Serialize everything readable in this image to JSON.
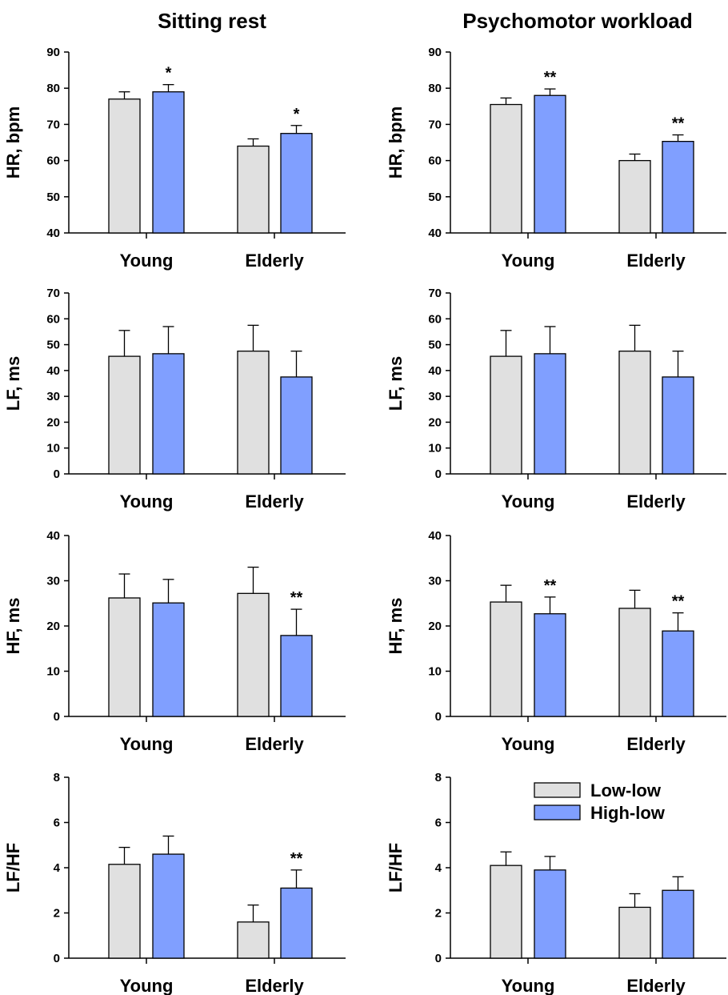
{
  "columns": [
    "Sitting rest",
    "Psychomotor workload"
  ],
  "colors": {
    "Low-low": "#e0e0e0",
    "High-low": "#809fff",
    "axis": "#000000"
  },
  "legend": {
    "entries": [
      "Low-low",
      "High-low"
    ],
    "placement": "top-right of bottom-right panel"
  },
  "chart_data": [
    {
      "type": "bar",
      "panel": "Sitting rest - HR",
      "title": "Sitting rest",
      "ylabel": "HR, bpm",
      "categories": [
        "Young",
        "Elderly"
      ],
      "ylim": [
        40,
        90
      ],
      "yticks": [
        "40",
        "50",
        "60",
        "70",
        "80",
        "90"
      ],
      "series": [
        {
          "name": "Low-low",
          "values": [
            77,
            64
          ],
          "errors": [
            2,
            2
          ]
        },
        {
          "name": "High-low",
          "values": [
            79,
            67.5
          ],
          "errors": [
            2,
            2.2
          ]
        }
      ],
      "annotations": [
        {
          "series": "High-low",
          "category": "Young",
          "text": "*"
        },
        {
          "series": "High-low",
          "category": "Elderly",
          "text": "*"
        }
      ]
    },
    {
      "type": "bar",
      "panel": "Psychomotor workload - HR",
      "title": "Psychomotor workload",
      "ylabel": "HR, bpm",
      "categories": [
        "Young",
        "Elderly"
      ],
      "ylim": [
        40,
        90
      ],
      "yticks": [
        "40",
        "50",
        "60",
        "70",
        "80",
        "90"
      ],
      "series": [
        {
          "name": "Low-low",
          "values": [
            75.5,
            60
          ],
          "errors": [
            1.8,
            1.8
          ]
        },
        {
          "name": "High-low",
          "values": [
            78,
            65.3
          ],
          "errors": [
            1.8,
            1.8
          ]
        }
      ],
      "annotations": [
        {
          "series": "High-low",
          "category": "Young",
          "text": "**"
        },
        {
          "series": "High-low",
          "category": "Elderly",
          "text": "**"
        }
      ]
    },
    {
      "type": "bar",
      "panel": "Sitting rest - LF",
      "ylabel": "LF, ms",
      "categories": [
        "Young",
        "Elderly"
      ],
      "ylim": [
        0,
        70
      ],
      "yticks": [
        "0",
        "10",
        "20",
        "30",
        "40",
        "50",
        "60",
        "70"
      ],
      "series": [
        {
          "name": "Low-low",
          "values": [
            45.5,
            47.5
          ],
          "errors": [
            10,
            10
          ]
        },
        {
          "name": "High-low",
          "values": [
            46.5,
            37.5
          ],
          "errors": [
            10.5,
            10
          ]
        }
      ],
      "annotations": []
    },
    {
      "type": "bar",
      "panel": "Psychomotor workload - LF",
      "ylabel": "LF, ms",
      "categories": [
        "Young",
        "Elderly"
      ],
      "ylim": [
        0,
        70
      ],
      "yticks": [
        "0",
        "10",
        "20",
        "30",
        "40",
        "50",
        "60",
        "70"
      ],
      "series": [
        {
          "name": "Low-low",
          "values": [
            45.5,
            47.5
          ],
          "errors": [
            10,
            10
          ]
        },
        {
          "name": "High-low",
          "values": [
            46.5,
            37.5
          ],
          "errors": [
            10.5,
            10
          ]
        }
      ],
      "annotations": []
    },
    {
      "type": "bar",
      "panel": "Sitting rest - HF",
      "ylabel": "HF, ms",
      "categories": [
        "Young",
        "Elderly"
      ],
      "ylim": [
        0,
        40
      ],
      "yticks": [
        "0",
        "10",
        "20",
        "30",
        "40"
      ],
      "series": [
        {
          "name": "Low-low",
          "values": [
            26.2,
            27.2
          ],
          "errors": [
            5.3,
            5.8
          ]
        },
        {
          "name": "High-low",
          "values": [
            25.1,
            17.9
          ],
          "errors": [
            5.2,
            5.8
          ]
        }
      ],
      "annotations": [
        {
          "series": "High-low",
          "category": "Elderly",
          "text": "**"
        }
      ]
    },
    {
      "type": "bar",
      "panel": "Psychomotor workload - HF",
      "ylabel": "HF, ms",
      "categories": [
        "Young",
        "Elderly"
      ],
      "ylim": [
        0,
        40
      ],
      "yticks": [
        "0",
        "10",
        "20",
        "30",
        "40"
      ],
      "series": [
        {
          "name": "Low-low",
          "values": [
            25.3,
            23.9
          ],
          "errors": [
            3.7,
            4
          ]
        },
        {
          "name": "High-low",
          "values": [
            22.7,
            18.9
          ],
          "errors": [
            3.7,
            4
          ]
        }
      ],
      "annotations": [
        {
          "series": "High-low",
          "category": "Young",
          "text": "**"
        },
        {
          "series": "High-low",
          "category": "Elderly",
          "text": "**"
        }
      ]
    },
    {
      "type": "bar",
      "panel": "Sitting rest - LF/HF",
      "ylabel": "LF/HF",
      "categories": [
        "Young",
        "Elderly"
      ],
      "ylim": [
        0,
        8
      ],
      "yticks": [
        "0",
        "2",
        "4",
        "6",
        "8"
      ],
      "series": [
        {
          "name": "Low-low",
          "values": [
            4.15,
            1.6
          ],
          "errors": [
            0.75,
            0.75
          ]
        },
        {
          "name": "High-low",
          "values": [
            4.6,
            3.1
          ],
          "errors": [
            0.8,
            0.8
          ]
        }
      ],
      "annotations": [
        {
          "series": "High-low",
          "category": "Elderly",
          "text": "**"
        }
      ]
    },
    {
      "type": "bar",
      "panel": "Psychomotor workload - LF/HF",
      "ylabel": "LF/HF",
      "categories": [
        "Young",
        "Elderly"
      ],
      "ylim": [
        0,
        8
      ],
      "yticks": [
        "0",
        "2",
        "4",
        "6",
        "8"
      ],
      "series": [
        {
          "name": "Low-low",
          "values": [
            4.1,
            2.25
          ],
          "errors": [
            0.6,
            0.6
          ]
        },
        {
          "name": "High-low",
          "values": [
            3.9,
            3.0
          ],
          "errors": [
            0.6,
            0.6
          ]
        }
      ],
      "annotations": []
    }
  ]
}
